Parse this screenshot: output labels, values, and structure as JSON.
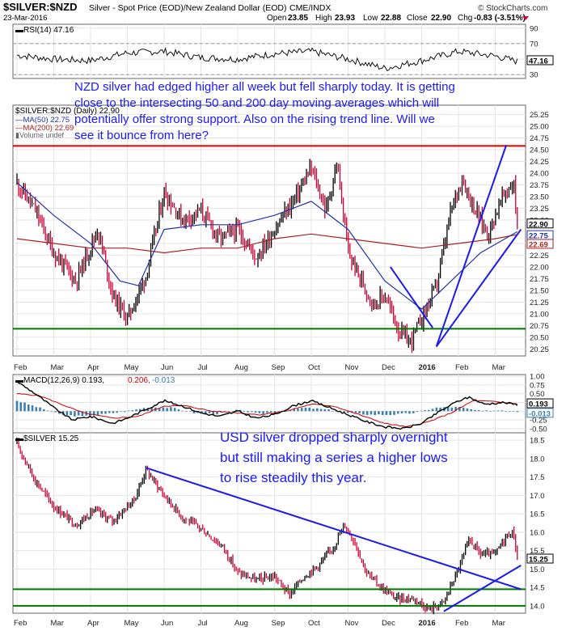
{
  "header": {
    "symbol": "$SILVER:$NZD",
    "description": "Silver - Spot Price (EOD)/New Zealand Dollar (EOD)",
    "exchange": "CME/INDX",
    "date": "23-Mar-2016",
    "watermark": "© StockCharts.com",
    "open_label": "Open",
    "open": "23.85",
    "high_label": "High",
    "high": "23.93",
    "low_label": "Low",
    "low": "22.88",
    "close_label": "Close",
    "close": "22.90",
    "chg_label": "Chg",
    "chg": "-0.83 (-3.51%)"
  },
  "colors": {
    "price": "#000000",
    "down": "#cc0033",
    "ma50": "#2233aa",
    "ma200": "#aa2222",
    "annotation": "#1a1aff",
    "support": "#007700",
    "resistance": "#dd0000",
    "trend": "#1a1aee"
  },
  "chart_data": [
    {
      "type": "line",
      "panel": "rsi",
      "legend": "RSI(14) 47.16",
      "current_label": "47.16",
      "ylim": [
        25,
        95
      ],
      "ticks": [
        "90",
        "70",
        "50",
        "30"
      ],
      "x_months": [
        "Feb",
        "Mar",
        "Apr",
        "May",
        "Jun",
        "Jul",
        "Aug",
        "Sep",
        "Oct",
        "Nov",
        "Dec",
        "2016",
        "Feb",
        "Mar"
      ],
      "points": [
        [
          0,
          55
        ],
        [
          1,
          50
        ],
        [
          2,
          48
        ],
        [
          3,
          58
        ],
        [
          4,
          60
        ],
        [
          5,
          52
        ],
        [
          6,
          50
        ],
        [
          7,
          57
        ],
        [
          8,
          60
        ],
        [
          9,
          50
        ],
        [
          10,
          38
        ],
        [
          11,
          48
        ],
        [
          12,
          60
        ],
        [
          13,
          54
        ],
        [
          13.6,
          47
        ]
      ]
    },
    {
      "type": "bar",
      "panel": "price",
      "title": "$SILVER:$NZD (Daily) 22.90",
      "legend": [
        "MA(50) 22.75",
        "MA(200) 22.69",
        "Volume undef"
      ],
      "current_labels": [
        "22.90",
        "22.75",
        "22.69"
      ],
      "ylim": [
        20.1,
        25.45
      ],
      "ticks": [
        "25.25",
        "25.00",
        "24.75",
        "24.50",
        "24.25",
        "24.00",
        "23.75",
        "23.50",
        "23.25",
        "23.00",
        "22.50",
        "22.25",
        "22.00",
        "21.75",
        "21.50",
        "21.25",
        "21.00",
        "20.75",
        "20.50",
        "20.25"
      ],
      "x_months": [
        "Feb",
        "Mar",
        "Apr",
        "May",
        "Jun",
        "Jul",
        "Aug",
        "Sep",
        "Oct",
        "Nov",
        "Dec",
        "2016",
        "Feb",
        "Mar"
      ],
      "price_points": [
        [
          0,
          23.8
        ],
        [
          0.5,
          23.2
        ],
        [
          1,
          22.3
        ],
        [
          1.6,
          21.7
        ],
        [
          2.2,
          22.8
        ],
        [
          2.6,
          21.4
        ],
        [
          3.0,
          20.9
        ],
        [
          3.5,
          21.8
        ],
        [
          4,
          23.6
        ],
        [
          4.5,
          23.0
        ],
        [
          5,
          23.2
        ],
        [
          5.5,
          22.6
        ],
        [
          6,
          22.8
        ],
        [
          6.5,
          22.2
        ],
        [
          7,
          22.8
        ],
        [
          7.5,
          23.4
        ],
        [
          8,
          24.1
        ],
        [
          8.4,
          23.2
        ],
        [
          8.7,
          24.2
        ],
        [
          9,
          22.3
        ],
        [
          9.3,
          21.8
        ],
        [
          9.7,
          21.2
        ],
        [
          10,
          21.4
        ],
        [
          10.4,
          20.6
        ],
        [
          10.7,
          20.4
        ],
        [
          11,
          20.9
        ],
        [
          11.4,
          21.6
        ],
        [
          11.8,
          23.2
        ],
        [
          12.1,
          23.9
        ],
        [
          12.4,
          23.3
        ],
        [
          12.8,
          22.7
        ],
        [
          13.2,
          23.5
        ],
        [
          13.5,
          23.8
        ],
        [
          13.6,
          22.9
        ]
      ],
      "ma50_points": [
        [
          0,
          23.8
        ],
        [
          1,
          23.1
        ],
        [
          2,
          22.5
        ],
        [
          2.8,
          21.7
        ],
        [
          3.3,
          21.6
        ],
        [
          4,
          22.8
        ],
        [
          5,
          22.9
        ],
        [
          6,
          22.9
        ],
        [
          7,
          23.1
        ],
        [
          8,
          23.4
        ],
        [
          9,
          22.8
        ],
        [
          10,
          21.7
        ],
        [
          11,
          21.1
        ],
        [
          11.8,
          21.7
        ],
        [
          12.6,
          22.3
        ],
        [
          13.6,
          22.75
        ]
      ],
      "ma200_points": [
        [
          0,
          22.6
        ],
        [
          1,
          22.5
        ],
        [
          2,
          22.4
        ],
        [
          3,
          22.4
        ],
        [
          4,
          22.3
        ],
        [
          5,
          22.4
        ],
        [
          6,
          22.4
        ],
        [
          7,
          22.6
        ],
        [
          8,
          22.7
        ],
        [
          9,
          22.6
        ],
        [
          10,
          22.5
        ],
        [
          11,
          22.4
        ],
        [
          12,
          22.5
        ],
        [
          13,
          22.6
        ],
        [
          13.6,
          22.69
        ]
      ],
      "support_level": 20.68,
      "resistance_level": 24.58,
      "trend_lines": [
        [
          [
            11.4,
            20.3
          ],
          [
            13.3,
            24.6
          ]
        ],
        [
          [
            11.4,
            20.3
          ],
          [
            13.7,
            22.8
          ]
        ],
        [
          [
            10.15,
            22.0
          ],
          [
            11.3,
            20.7
          ]
        ]
      ],
      "annotation": "NZD silver had edged higher all week but fell sharply today. It is getting close to the intersecting 50 and 200 day moving averages which will potentially offer strong support.  Also on the rising trend line. Will we see it bounce from here?"
    },
    {
      "type": "line",
      "panel": "macd",
      "legend": "MACD(12,26,9) 0.193, 0.206, -0.013",
      "legend_parts": [
        "MACD(12,26,9) 0.193,",
        "0.206,",
        "-0.013"
      ],
      "current_labels": [
        "0.193",
        "-0.013"
      ],
      "ylim": [
        -0.62,
        1.05
      ],
      "ticks": [
        "1.00",
        "0.75",
        "0.50",
        "0.25",
        "0.00",
        "-0.25",
        "-0.50"
      ],
      "macd_points": [
        [
          0,
          0.85
        ],
        [
          0.5,
          0.5
        ],
        [
          1,
          0.1
        ],
        [
          1.5,
          -0.25
        ],
        [
          2,
          -0.15
        ],
        [
          2.6,
          -0.35
        ],
        [
          3,
          -0.2
        ],
        [
          3.5,
          0.05
        ],
        [
          4,
          0.3
        ],
        [
          4.5,
          0.15
        ],
        [
          5,
          -0.05
        ],
        [
          5.5,
          -0.15
        ],
        [
          6,
          0.0
        ],
        [
          6.5,
          -0.2
        ],
        [
          7,
          -0.1
        ],
        [
          7.5,
          0.15
        ],
        [
          8,
          0.3
        ],
        [
          8.5,
          0.1
        ],
        [
          9,
          -0.1
        ],
        [
          9.5,
          -0.3
        ],
        [
          10,
          -0.45
        ],
        [
          10.5,
          -0.5
        ],
        [
          11,
          -0.35
        ],
        [
          11.5,
          0.0
        ],
        [
          12,
          0.3
        ],
        [
          12.3,
          0.4
        ],
        [
          12.7,
          0.2
        ],
        [
          13.2,
          0.25
        ],
        [
          13.6,
          0.19
        ]
      ],
      "signal_points": [
        [
          0,
          0.5
        ],
        [
          0.6,
          0.45
        ],
        [
          1.2,
          0.2
        ],
        [
          1.8,
          -0.05
        ],
        [
          2.6,
          -0.2
        ],
        [
          3.3,
          -0.15
        ],
        [
          4,
          0.15
        ],
        [
          4.6,
          0.15
        ],
        [
          5.3,
          0.0
        ],
        [
          6,
          -0.05
        ],
        [
          6.6,
          -0.1
        ],
        [
          7.3,
          0.0
        ],
        [
          8,
          0.2
        ],
        [
          8.6,
          0.15
        ],
        [
          9.3,
          -0.1
        ],
        [
          10,
          -0.35
        ],
        [
          10.6,
          -0.45
        ],
        [
          11.2,
          -0.3
        ],
        [
          11.8,
          -0.05
        ],
        [
          12.4,
          0.3
        ],
        [
          12.9,
          0.28
        ],
        [
          13.6,
          0.21
        ]
      ],
      "hist_points": [
        [
          0,
          0.3
        ],
        [
          0.6,
          0.1
        ],
        [
          1.2,
          -0.1
        ],
        [
          1.8,
          -0.15
        ],
        [
          2.4,
          -0.08
        ],
        [
          3.0,
          0.0
        ],
        [
          3.6,
          0.12
        ],
        [
          4.2,
          0.1
        ],
        [
          4.8,
          -0.05
        ],
        [
          5.4,
          -0.08
        ],
        [
          6.0,
          0.03
        ],
        [
          6.6,
          -0.08
        ],
        [
          7.2,
          0.0
        ],
        [
          7.8,
          0.1
        ],
        [
          8.4,
          0.05
        ],
        [
          9.0,
          -0.05
        ],
        [
          9.6,
          -0.1
        ],
        [
          10.2,
          -0.1
        ],
        [
          10.8,
          -0.05
        ],
        [
          11.4,
          0.1
        ],
        [
          12.0,
          0.12
        ],
        [
          12.6,
          0.0
        ],
        [
          13.2,
          0.03
        ],
        [
          13.6,
          -0.013
        ]
      ]
    },
    {
      "type": "line",
      "panel": "usd",
      "legend": "$SILVER 15.25",
      "current_label": "15.25",
      "ylim": [
        13.8,
        18.7
      ],
      "ticks": [
        "18.5",
        "18.0",
        "17.5",
        "17.0",
        "16.5",
        "16.0",
        "15.5",
        "15.0",
        "14.5",
        "14.0"
      ],
      "x_months": [
        "Feb",
        "Mar",
        "Apr",
        "May",
        "Jun",
        "Jul",
        "Aug",
        "Sep",
        "Oct",
        "Nov",
        "Dec",
        "2016",
        "Feb",
        "Mar"
      ],
      "points": [
        [
          0,
          18.4
        ],
        [
          0.5,
          17.4
        ],
        [
          1,
          16.7
        ],
        [
          1.6,
          16.2
        ],
        [
          2.1,
          16.6
        ],
        [
          2.6,
          16.3
        ],
        [
          3.2,
          16.9
        ],
        [
          3.5,
          17.7
        ],
        [
          4,
          17.0
        ],
        [
          4.5,
          16.4
        ],
        [
          5,
          16.1
        ],
        [
          5.6,
          15.6
        ],
        [
          6,
          14.9
        ],
        [
          6.5,
          14.7
        ],
        [
          7,
          14.8
        ],
        [
          7.4,
          14.3
        ],
        [
          7.8,
          14.8
        ],
        [
          8.2,
          15.1
        ],
        [
          8.6,
          15.6
        ],
        [
          8.9,
          16.2
        ],
        [
          9.2,
          15.7
        ],
        [
          9.5,
          14.9
        ],
        [
          9.9,
          14.5
        ],
        [
          10.3,
          14.2
        ],
        [
          10.8,
          14.2
        ],
        [
          11.2,
          13.9
        ],
        [
          11.6,
          14.1
        ],
        [
          12.0,
          15.0
        ],
        [
          12.3,
          15.8
        ],
        [
          12.6,
          15.4
        ],
        [
          13.0,
          15.4
        ],
        [
          13.3,
          15.9
        ],
        [
          13.5,
          16.0
        ],
        [
          13.6,
          15.25
        ]
      ],
      "support_levels": [
        14.45,
        14.0
      ],
      "trend_lines": [
        [
          [
            3.5,
            17.75
          ],
          [
            13.7,
            14.45
          ]
        ],
        [
          [
            11.6,
            13.85
          ],
          [
            13.7,
            15.1
          ]
        ]
      ],
      "annotation": "USD silver dropped sharply overnight but still making a series a higher lows to rise steadily this year."
    }
  ]
}
